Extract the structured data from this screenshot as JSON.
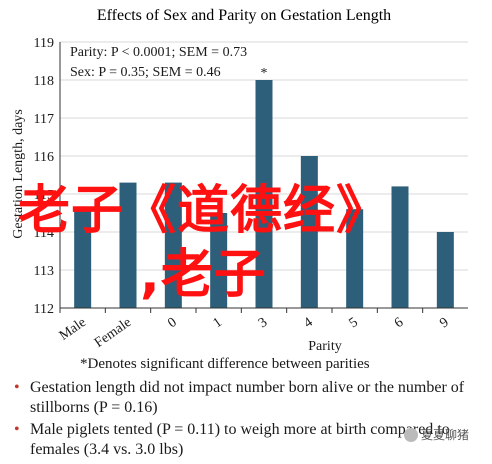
{
  "chart_data": {
    "type": "bar",
    "title": "Effects of Sex and Parity on Gestation Length",
    "ylabel": "Gestation Length, days",
    "xlabel": "Parity",
    "ylim": [
      112,
      119
    ],
    "yticks": [
      112,
      113,
      114,
      115,
      116,
      117,
      118,
      119
    ],
    "categories": [
      "Male",
      "Female",
      "0",
      "1",
      "3",
      "4",
      "5",
      "6",
      "9"
    ],
    "values": [
      114.6,
      115.3,
      115.3,
      114.5,
      118.0,
      116.0,
      114.6,
      115.2,
      114.0
    ],
    "bar_color": "#2e5f7a",
    "annotations": [
      "Parity: P < 0.0001; SEM = 0.73",
      "Sex: P = 0.35; SEM = 0.46"
    ],
    "star_category": "3",
    "star_label": "*",
    "grid": true
  },
  "note": "*Denotes significant difference between parities",
  "bullets": [
    "Gestation length did not impact number born alive or the number of stillborns (P = 0.16)",
    "Male piglets tented (P = 0.11) to weigh more at birth compared to females (3.4 vs. 3.0 lbs)"
  ],
  "overlay_text": [
    "老子《道德经》",
    ",老子"
  ],
  "watermark": "夏夏聊猪"
}
